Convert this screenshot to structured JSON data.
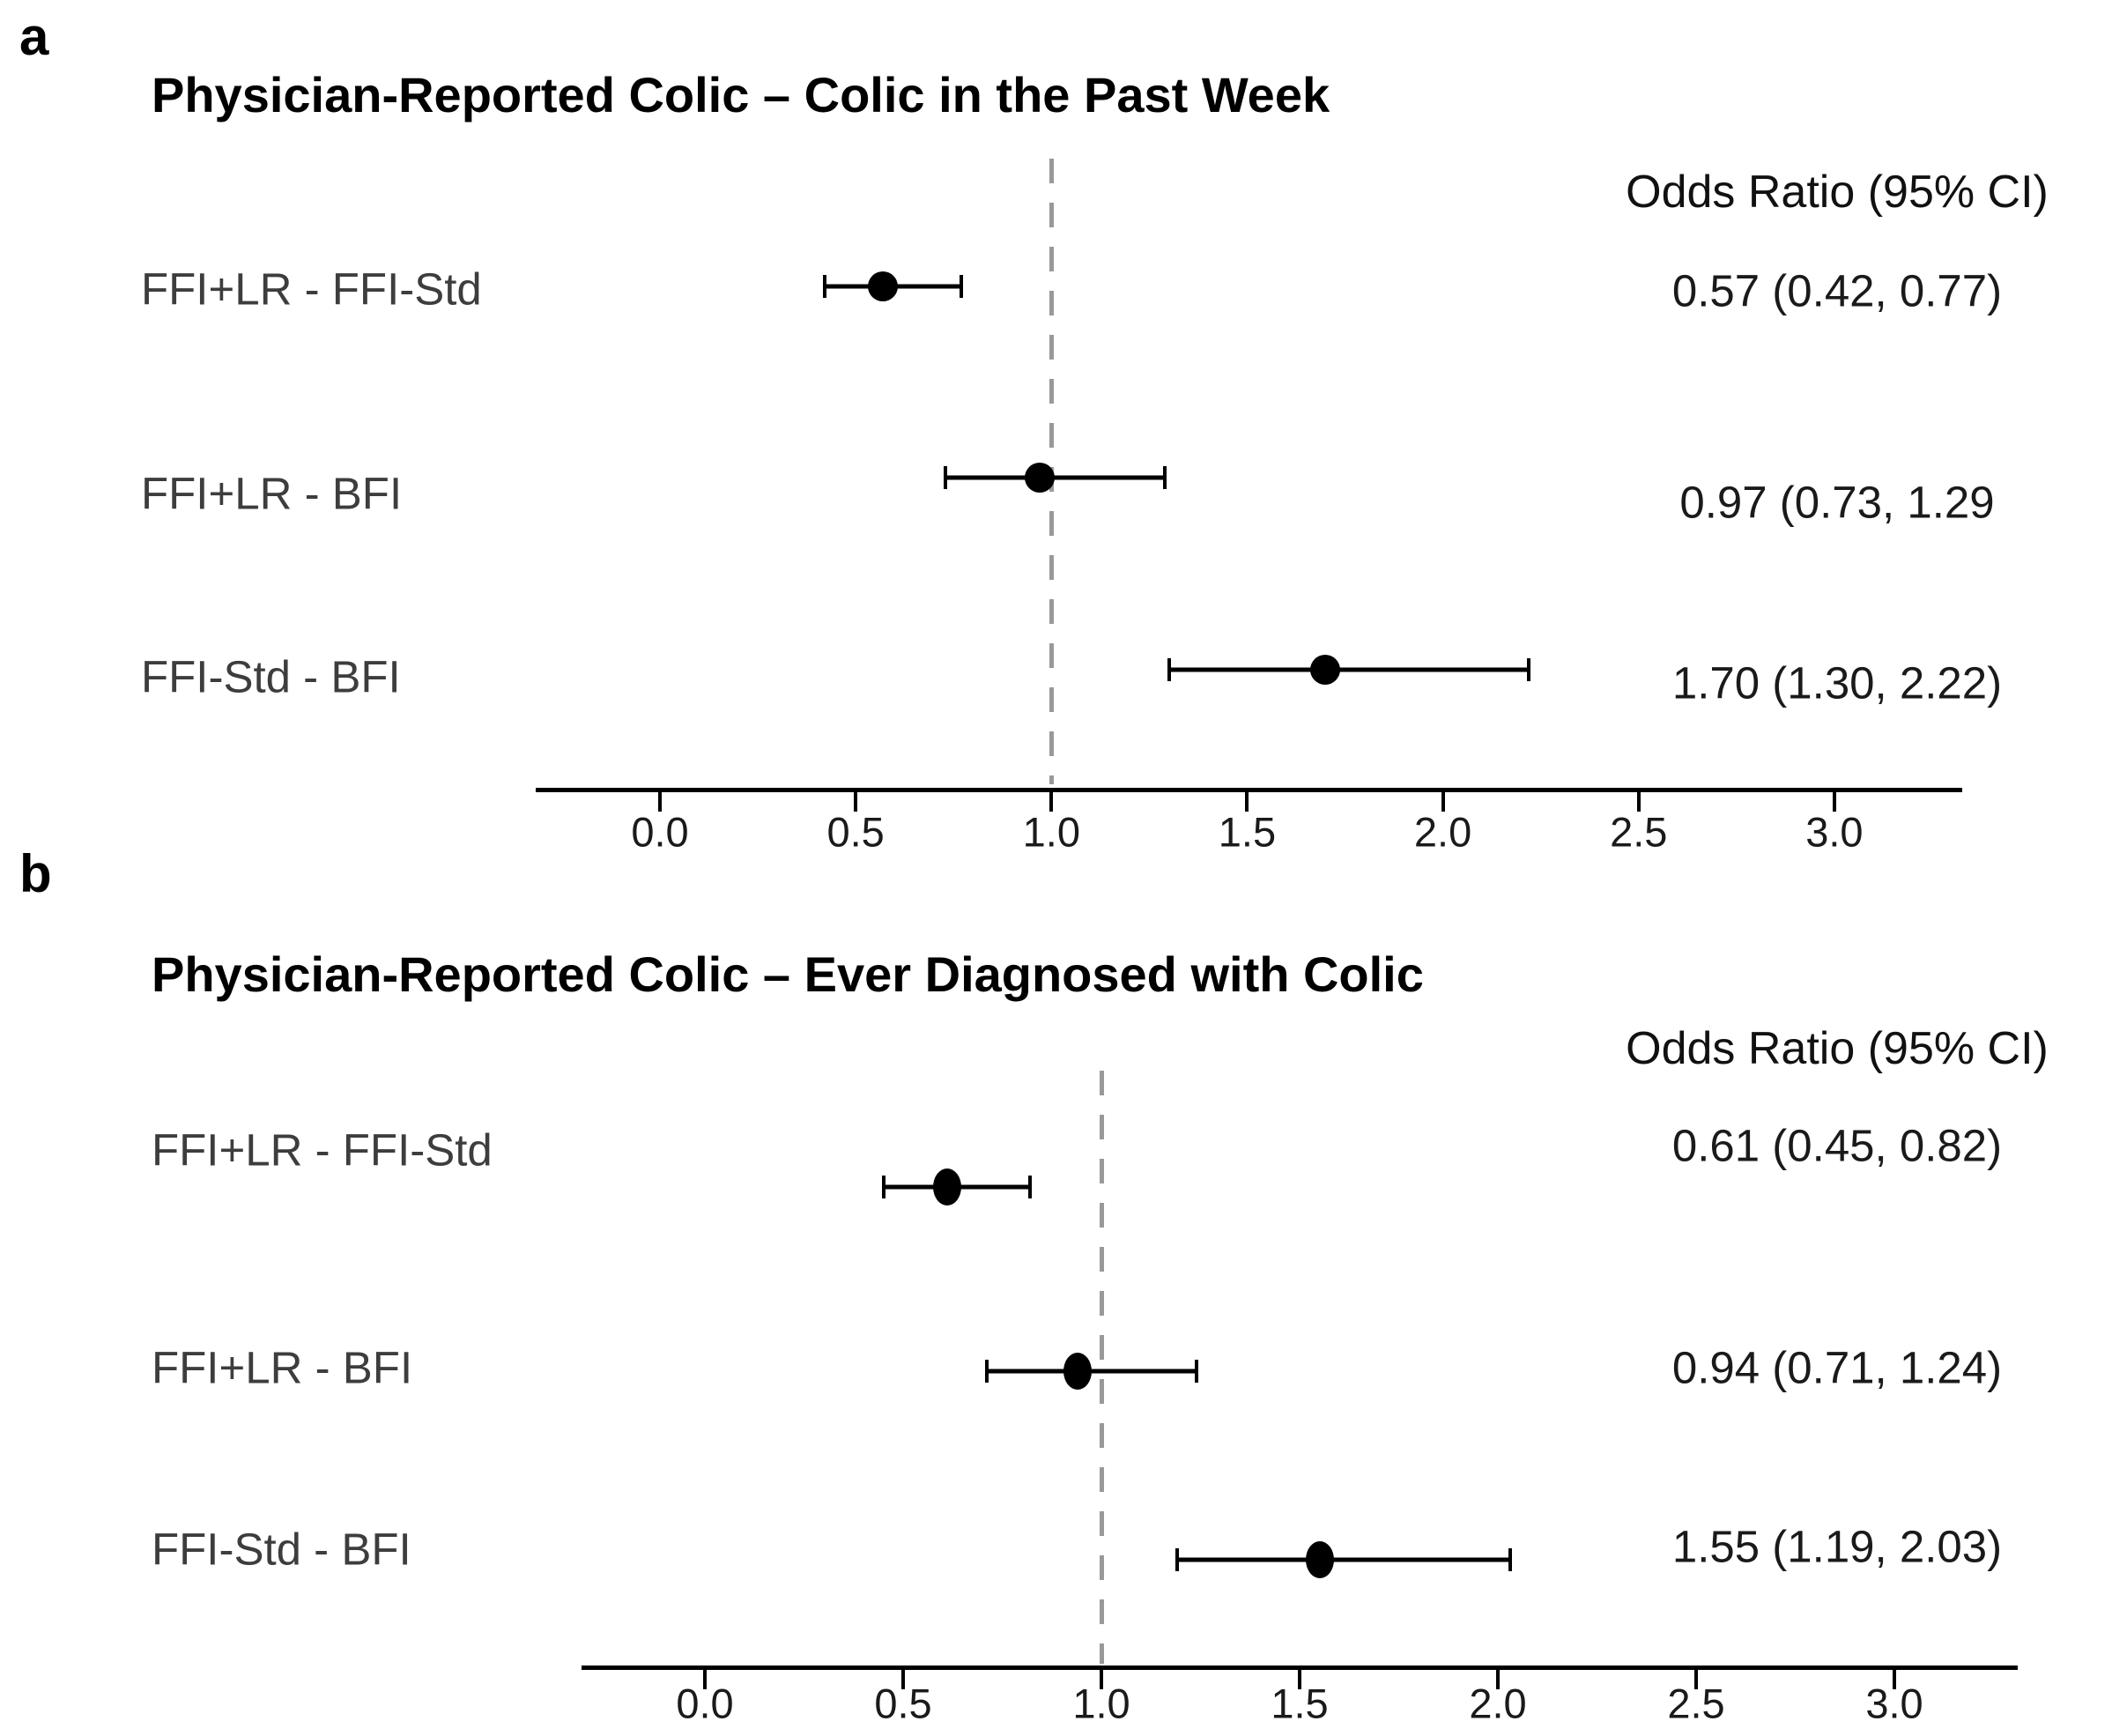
{
  "chart_data": [
    {
      "type": "scatter",
      "subtype": "forest-plot",
      "panel_letter": "a",
      "title": "Physician-Reported Colic – Colic in the Past Week",
      "or_header": "Odds Ratio (95% CI)",
      "categories": [
        "FFI+LR - FFI-Std",
        "FFI+LR - BFI",
        "FFI-Std - BFI"
      ],
      "series": [
        {
          "name": "Odds Ratio (95% CI)",
          "values": [
            0.57,
            0.97,
            1.7
          ],
          "ci_low": [
            0.42,
            0.73,
            1.3
          ],
          "ci_high": [
            0.77,
            1.29,
            2.22
          ]
        }
      ],
      "or_labels": [
        "0.57 (0.42, 0.77)",
        "0.97 (0.73, 1.29",
        "1.70 (1.30, 2.22)"
      ],
      "x_ticks": [
        "0.0",
        "0.5",
        "1.0",
        "1.5",
        "2.0",
        "2.5",
        "3.0"
      ],
      "xlim": [
        -0.32,
        3.33
      ],
      "ref_line": 1.0,
      "grid": false,
      "legend": "none",
      "marker_color": "#000000",
      "ref_line_color": "#999999"
    },
    {
      "type": "scatter",
      "subtype": "forest-plot",
      "panel_letter": "b",
      "title": "Physician-Reported Colic – Ever Diagnosed with Colic",
      "or_header": "Odds Ratio (95% CI)",
      "categories": [
        "FFI+LR - FFI-Std",
        "FFI+LR - BFI",
        "FFI-Std - BFI"
      ],
      "series": [
        {
          "name": "Odds Ratio (95% CI)",
          "values": [
            0.61,
            0.94,
            1.55
          ],
          "ci_low": [
            0.45,
            0.71,
            1.19
          ],
          "ci_high": [
            0.82,
            1.24,
            2.03
          ]
        }
      ],
      "or_labels": [
        "0.61 (0.45, 0.82)",
        "0.94 (0.71, 1.24)",
        "1.55 (1.19, 2.03)"
      ],
      "x_ticks": [
        "0.0",
        "0.5",
        "1.0",
        "1.5",
        "2.0",
        "2.5",
        "3.0"
      ],
      "xlim": [
        -0.31,
        3.31
      ],
      "ref_line": 1.0,
      "grid": false,
      "legend": "none",
      "marker_color": "#000000",
      "ref_line_color": "#999999"
    }
  ]
}
